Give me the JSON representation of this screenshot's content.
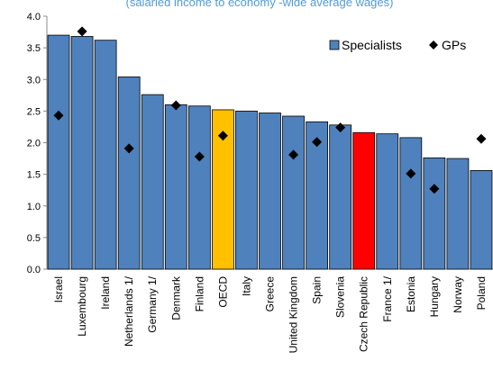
{
  "subtitle": "(salaried income to economy -wide average wages)",
  "colors": {
    "default_bar": "#4f81bd",
    "oecd_bar": "#ffc000",
    "czech_bar": "#ff0000",
    "bar_edge": "#000000",
    "gp_marker": "#000000",
    "subtitle": "#4f9bd9"
  },
  "chart_data": {
    "type": "bar",
    "ylim": [
      0,
      4
    ],
    "yticks": [
      "0.0",
      "0.5",
      "1.0",
      "1.5",
      "2.0",
      "2.5",
      "3.0",
      "3.5",
      "4.0"
    ],
    "grid": false,
    "legend_position": "top-right",
    "categories": [
      "Israel",
      "Luxembourg",
      "Ireland",
      "Netherlands 1/",
      "Germany 1/",
      "Denmark",
      "Finland",
      "OECD",
      "Italy",
      "Greece",
      "United Kingdom",
      "Spain",
      "Slovenia",
      "Czech Republic",
      "France 1/",
      "Estonia",
      "Hungary",
      "Norway",
      "Poland"
    ],
    "series": [
      {
        "name": "Specialists",
        "mark": "bar",
        "values": [
          3.7,
          3.68,
          3.62,
          3.04,
          2.76,
          2.6,
          2.58,
          2.52,
          2.5,
          2.47,
          2.42,
          2.33,
          2.28,
          2.16,
          2.14,
          2.08,
          1.76,
          1.75,
          1.56
        ],
        "highlight": {
          "OECD": "oecd_bar",
          "Czech Republic": "czech_bar"
        }
      },
      {
        "name": "GPs",
        "mark": "diamond",
        "values": [
          2.43,
          3.76,
          null,
          1.91,
          null,
          2.59,
          1.78,
          2.11,
          null,
          null,
          1.81,
          2.01,
          2.24,
          null,
          null,
          1.51,
          1.27,
          null,
          2.06
        ]
      }
    ]
  }
}
